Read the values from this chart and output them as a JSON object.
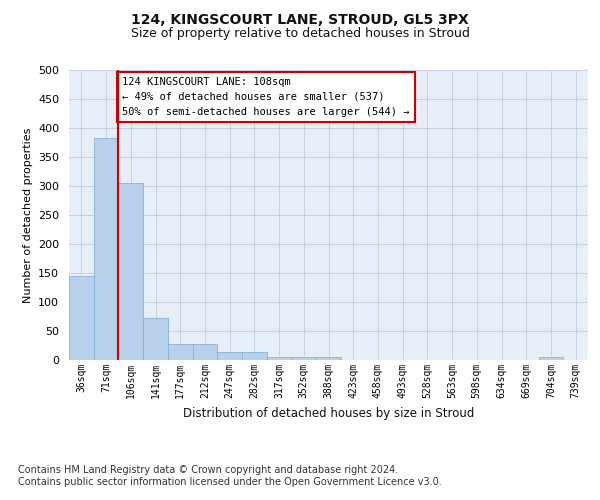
{
  "title": "124, KINGSCOURT LANE, STROUD, GL5 3PX",
  "subtitle": "Size of property relative to detached houses in Stroud",
  "xlabel": "Distribution of detached houses by size in Stroud",
  "ylabel": "Number of detached properties",
  "bar_color": "#b8d0ea",
  "bar_edge_color": "#7aaed4",
  "background_color": "#e8eef8",
  "categories": [
    "36sqm",
    "71sqm",
    "106sqm",
    "141sqm",
    "177sqm",
    "212sqm",
    "247sqm",
    "282sqm",
    "317sqm",
    "352sqm",
    "388sqm",
    "423sqm",
    "458sqm",
    "493sqm",
    "528sqm",
    "563sqm",
    "598sqm",
    "634sqm",
    "669sqm",
    "704sqm",
    "739sqm"
  ],
  "values": [
    145,
    383,
    305,
    72,
    27,
    27,
    14,
    14,
    5,
    5,
    5,
    0,
    0,
    0,
    0,
    0,
    0,
    0,
    0,
    5,
    0
  ],
  "ylim": [
    0,
    500
  ],
  "yticks": [
    0,
    50,
    100,
    150,
    200,
    250,
    300,
    350,
    400,
    450,
    500
  ],
  "vline_x_index": 2,
  "vline_color": "#cc0000",
  "annotation_text": "124 KINGSCOURT LANE: 108sqm\n← 49% of detached houses are smaller (537)\n50% of semi-detached houses are larger (544) →",
  "annotation_box_color": "#ffffff",
  "annotation_box_edge": "#cc0000",
  "footer_text": "Contains HM Land Registry data © Crown copyright and database right 2024.\nContains public sector information licensed under the Open Government Licence v3.0.",
  "grid_color": "#c0cce0"
}
